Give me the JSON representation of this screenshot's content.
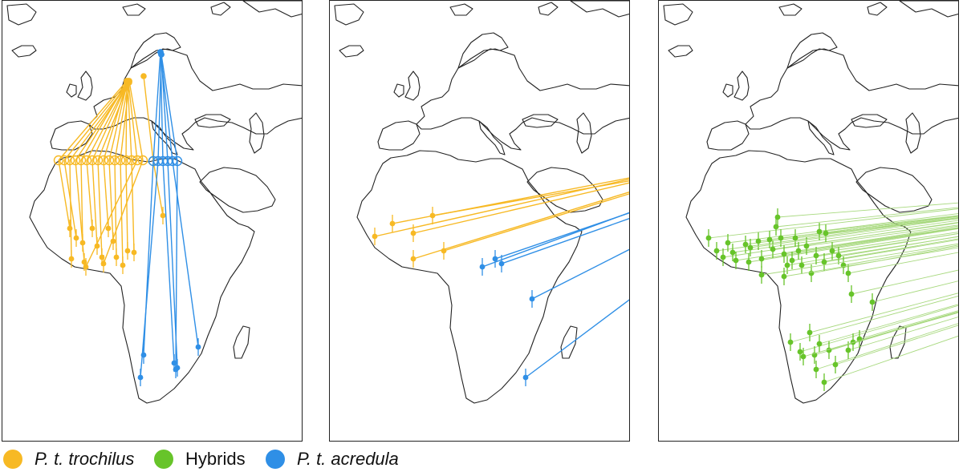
{
  "colors": {
    "trochilus": "#f7b924",
    "hybrids": "#67c42a",
    "hybrids_light": "#a8d97f",
    "acredula": "#2f8fe6",
    "coast": "#222222"
  },
  "icons": {
    "legend_marker": "filled-circle-icon",
    "breeding_site": "filled-circle-icon",
    "stopover_site": "open-circle-icon",
    "wintering_site": "filled-circle-with-error-bar-icon"
  },
  "legend": [
    {
      "key": "trochilus",
      "label": "P. t. trochilus",
      "italic": true
    },
    {
      "key": "hybrids",
      "label": "Hybrids",
      "italic": false
    },
    {
      "key": "acredula",
      "label": "P. t. acredula",
      "italic": true
    }
  ],
  "panels": [
    {
      "id": "left",
      "groups": [
        "trochilus",
        "acredula"
      ]
    },
    {
      "id": "middle",
      "groups": [
        "trochilus",
        "acredula"
      ]
    },
    {
      "id": "right",
      "groups": [
        "hybrids"
      ]
    }
  ]
}
